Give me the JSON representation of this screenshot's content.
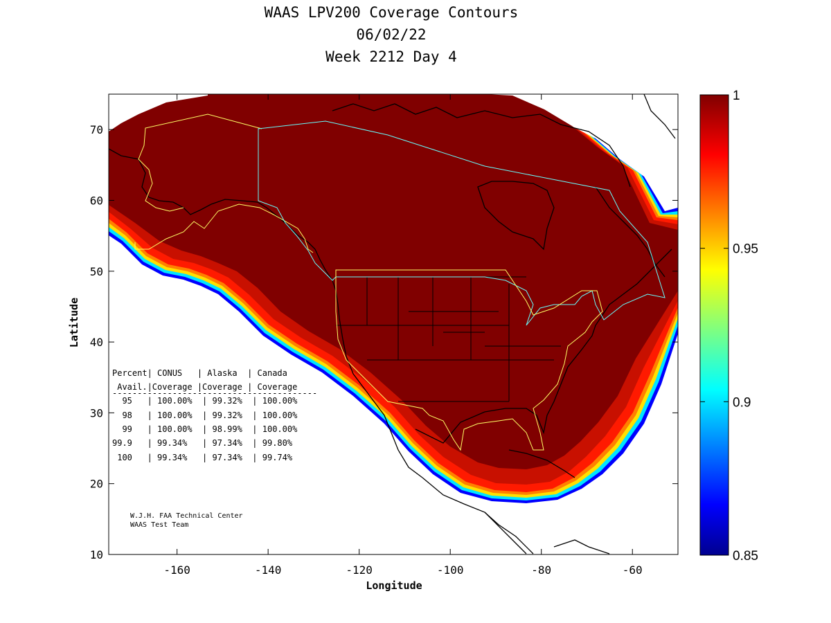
{
  "title": {
    "line1": "WAAS LPV200 Coverage Contours",
    "line2": "06/02/22",
    "line3": "Week 2212 Day 4"
  },
  "axes": {
    "xlabel": "Longitude",
    "ylabel": "Latitude",
    "xlim": [
      -175,
      -50
    ],
    "ylim": [
      10,
      75
    ],
    "xticks": [
      -160,
      -140,
      -120,
      -100,
      -80,
      -60
    ],
    "yticks": [
      10,
      20,
      30,
      40,
      50,
      60,
      70
    ],
    "xtick_labels": [
      "-160",
      "-140",
      "-120",
      "-100",
      "-80",
      "-60"
    ],
    "ytick_labels": [
      "10",
      "20",
      "30",
      "40",
      "50",
      "60",
      "70"
    ]
  },
  "colorbar": {
    "range": [
      0.85,
      1
    ],
    "ticks": [
      1,
      0.95,
      0.9,
      0.85
    ],
    "tick_labels": [
      "1",
      "0.95",
      "0.9",
      "0.85"
    ],
    "colormap": "jet"
  },
  "stats_table": {
    "header1": "Percent| CONUS   | Alaska  | Canada",
    "header2": " Avail.|Coverage |Coverage | Coverage",
    "separator": "-----------------------------------------",
    "rows": [
      "  95   | 100.00%  | 99.32%  | 100.00%",
      "  98   | 100.00%  | 99.32%  | 100.00%",
      "  99   | 100.00%  | 98.99%  | 100.00%",
      "99.9   | 99.34%   | 97.34%  | 99.80%",
      " 100   | 99.34%   | 97.34%  | 99.74%"
    ]
  },
  "credit": {
    "line1": "W.J.H. FAA Technical Center",
    "line2": "WAAS Test Team"
  },
  "colors": {
    "coverage_full": "#800000",
    "conus_boundary": "#ffff00",
    "canada_boundary": "#00ffff"
  }
}
